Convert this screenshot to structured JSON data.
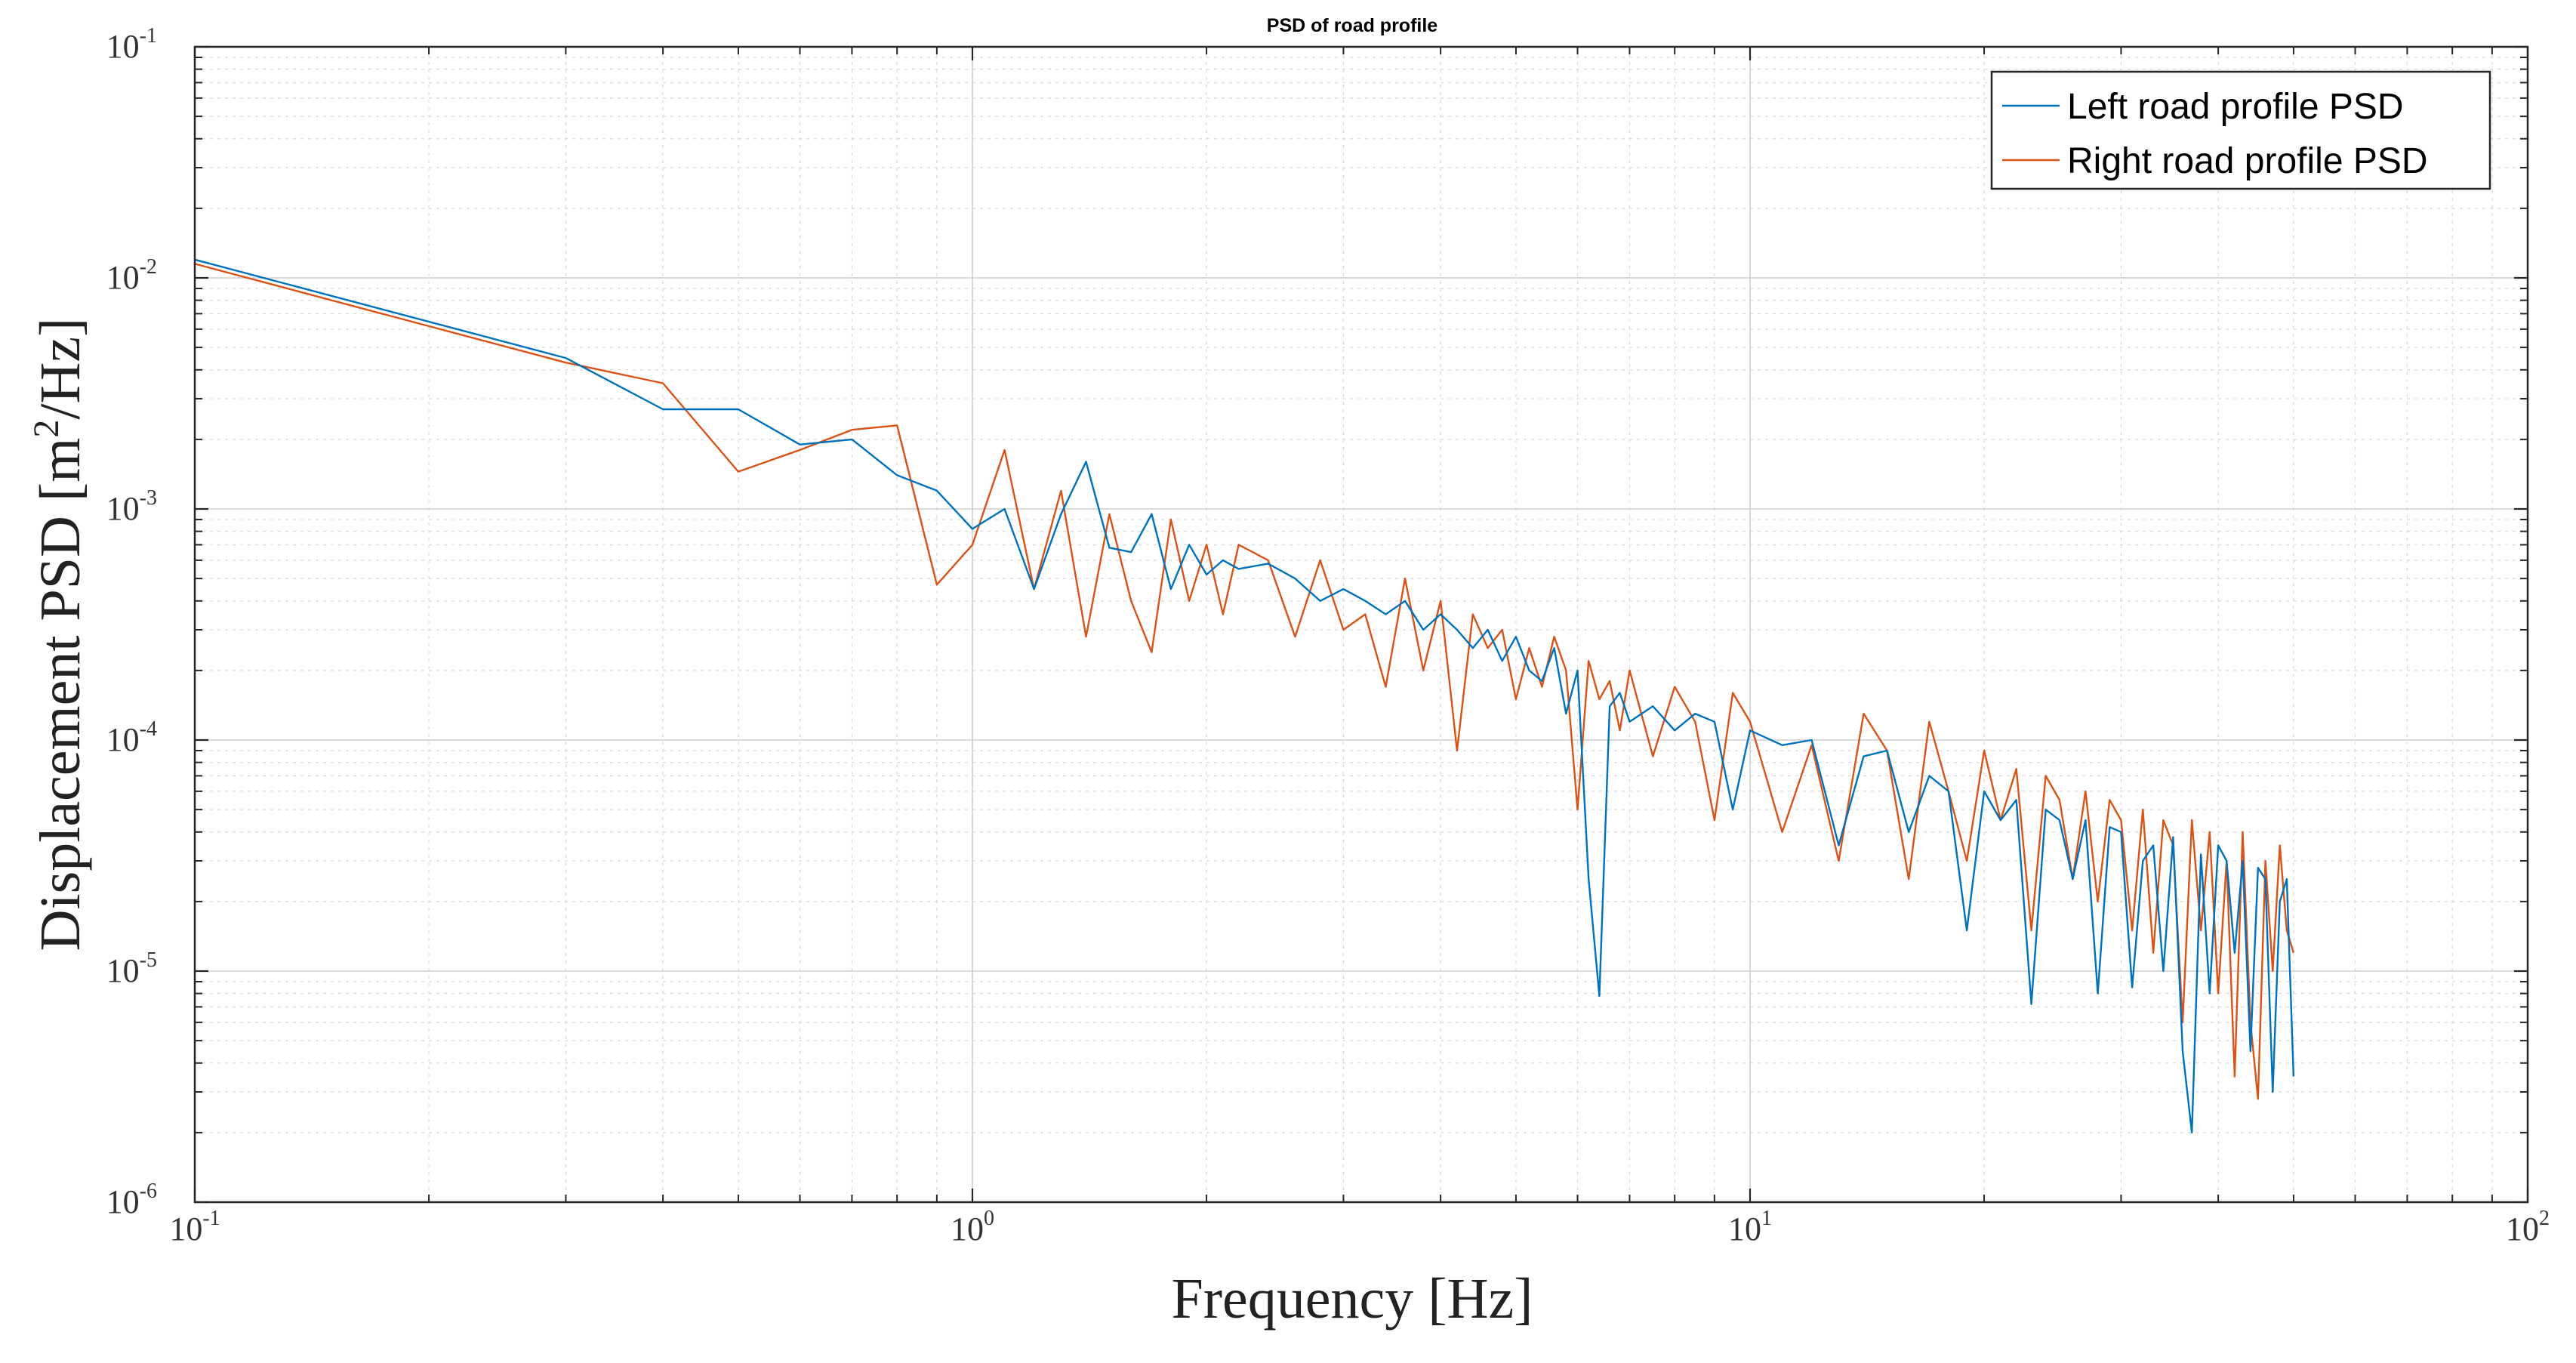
{
  "chart_data": {
    "type": "line",
    "title": "PSD of road profile",
    "xlabel": "Frequency [Hz]",
    "ylabel_main": "Displacement PSD [m",
    "ylabel_sup": "2",
    "ylabel_tail": "/Hz]",
    "xscale": "log",
    "yscale": "log",
    "xlim": [
      0.1,
      100
    ],
    "ylim": [
      1e-06,
      0.1
    ],
    "grid": true,
    "minor_grid": true,
    "legend_position": "top-right",
    "x_ticks": [
      {
        "base": "10",
        "exp": "-1",
        "value": 0.1
      },
      {
        "base": "10",
        "exp": "0",
        "value": 1
      },
      {
        "base": "10",
        "exp": "1",
        "value": 10
      },
      {
        "base": "10",
        "exp": "2",
        "value": 100
      }
    ],
    "y_ticks": [
      {
        "base": "10",
        "exp": "-6",
        "value": 1e-06
      },
      {
        "base": "10",
        "exp": "-5",
        "value": 1e-05
      },
      {
        "base": "10",
        "exp": "-4",
        "value": 0.0001
      },
      {
        "base": "10",
        "exp": "-3",
        "value": 0.001
      },
      {
        "base": "10",
        "exp": "-2",
        "value": 0.01
      },
      {
        "base": "10",
        "exp": "-1",
        "value": 0.1
      }
    ],
    "series": [
      {
        "name": "Left road profile PSD",
        "color": "#0072BD",
        "x": [
          0.1,
          0.3,
          0.4,
          0.5,
          0.6,
          0.7,
          0.8,
          0.9,
          1.0,
          1.1,
          1.2,
          1.3,
          1.4,
          1.5,
          1.6,
          1.7,
          1.8,
          1.9,
          2.0,
          2.1,
          2.2,
          2.4,
          2.6,
          2.8,
          3.0,
          3.2,
          3.4,
          3.6,
          3.8,
          4.0,
          4.2,
          4.4,
          4.6,
          4.8,
          5.0,
          5.2,
          5.4,
          5.6,
          5.8,
          6.0,
          6.2,
          6.4,
          6.6,
          6.8,
          7.0,
          7.5,
          8.0,
          8.5,
          9.0,
          9.5,
          10,
          11,
          12,
          13,
          14,
          15,
          16,
          17,
          18,
          19,
          20,
          21,
          22,
          23,
          24,
          25,
          26,
          27,
          28,
          29,
          30,
          31,
          32,
          33,
          34,
          35,
          36,
          37,
          38,
          39,
          40,
          41,
          42,
          43,
          44,
          45,
          46,
          47,
          48,
          49,
          50
        ],
        "y": [
          0.012,
          0.0045,
          0.0027,
          0.0027,
          0.0019,
          0.002,
          0.0014,
          0.0012,
          0.00082,
          0.001,
          0.00045,
          0.00095,
          0.0016,
          0.00068,
          0.00065,
          0.00095,
          0.00045,
          0.0007,
          0.00052,
          0.0006,
          0.00055,
          0.00058,
          0.0005,
          0.0004,
          0.00045,
          0.0004,
          0.00035,
          0.0004,
          0.0003,
          0.00035,
          0.0003,
          0.00025,
          0.0003,
          0.00022,
          0.00028,
          0.0002,
          0.00018,
          0.00025,
          0.00013,
          0.0002,
          2.5e-05,
          7.8e-06,
          0.00014,
          0.00016,
          0.00012,
          0.00014,
          0.00011,
          0.00013,
          0.00012,
          5e-05,
          0.00011,
          9.5e-05,
          0.0001,
          3.5e-05,
          8.5e-05,
          9e-05,
          4e-05,
          7e-05,
          6e-05,
          1.5e-05,
          6e-05,
          4.5e-05,
          5.5e-05,
          7.2e-06,
          5e-05,
          4.5e-05,
          2.5e-05,
          4.5e-05,
          8e-06,
          4.2e-05,
          4e-05,
          8.5e-06,
          3e-05,
          3.5e-05,
          1e-05,
          3.8e-05,
          4.5e-06,
          2e-06,
          3.2e-05,
          8e-06,
          3.5e-05,
          3e-05,
          1.2e-05,
          3e-05,
          4.5e-06,
          2.8e-05,
          2.5e-05,
          3e-06,
          2e-05,
          2.5e-05,
          3.5e-06
        ]
      },
      {
        "name": "Right road profile PSD",
        "color": "#D95319",
        "x": [
          0.1,
          0.3,
          0.4,
          0.5,
          0.6,
          0.7,
          0.8,
          0.9,
          1.0,
          1.1,
          1.2,
          1.3,
          1.4,
          1.5,
          1.6,
          1.7,
          1.8,
          1.9,
          2.0,
          2.1,
          2.2,
          2.4,
          2.6,
          2.8,
          3.0,
          3.2,
          3.4,
          3.6,
          3.8,
          4.0,
          4.2,
          4.4,
          4.6,
          4.8,
          5.0,
          5.2,
          5.4,
          5.6,
          5.8,
          6.0,
          6.2,
          6.4,
          6.6,
          6.8,
          7.0,
          7.5,
          8.0,
          8.5,
          9.0,
          9.5,
          10,
          11,
          12,
          13,
          14,
          15,
          16,
          17,
          18,
          19,
          20,
          21,
          22,
          23,
          24,
          25,
          26,
          27,
          28,
          29,
          30,
          31,
          32,
          33,
          34,
          35,
          36,
          37,
          38,
          39,
          40,
          41,
          42,
          43,
          44,
          45,
          46,
          47,
          48,
          49,
          50
        ],
        "y": [
          0.0115,
          0.0043,
          0.0035,
          0.00145,
          0.0018,
          0.0022,
          0.0023,
          0.00047,
          0.0007,
          0.0018,
          0.00045,
          0.0012,
          0.00028,
          0.00095,
          0.0004,
          0.00024,
          0.0009,
          0.0004,
          0.0007,
          0.00035,
          0.0007,
          0.0006,
          0.00028,
          0.0006,
          0.0003,
          0.00035,
          0.00017,
          0.0005,
          0.0002,
          0.0004,
          9e-05,
          0.00035,
          0.00025,
          0.0003,
          0.00015,
          0.00025,
          0.00017,
          0.00028,
          0.0002,
          5e-05,
          0.00022,
          0.00015,
          0.00018,
          0.00011,
          0.0002,
          8.5e-05,
          0.00017,
          0.00012,
          4.5e-05,
          0.00016,
          0.00012,
          4e-05,
          9.5e-05,
          3e-05,
          0.00013,
          9e-05,
          2.5e-05,
          0.00012,
          6e-05,
          3e-05,
          9e-05,
          4.5e-05,
          7.5e-05,
          1.5e-05,
          7e-05,
          5.5e-05,
          2.5e-05,
          6e-05,
          2e-05,
          5.5e-05,
          4.5e-05,
          1.5e-05,
          5e-05,
          1.2e-05,
          4.5e-05,
          3.5e-05,
          6e-06,
          4.5e-05,
          1.5e-05,
          4e-05,
          8e-06,
          3e-05,
          3.5e-06,
          4e-05,
          6e-06,
          2.8e-06,
          3e-05,
          1e-05,
          3.5e-05,
          1.5e-05,
          1.2e-05
        ]
      }
    ]
  }
}
